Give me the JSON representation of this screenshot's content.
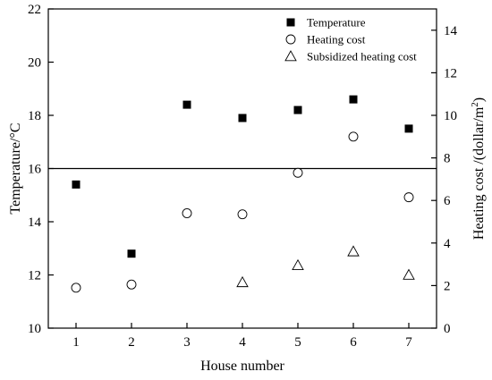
{
  "chart_data": {
    "type": "scatter",
    "xlabel": "House number",
    "ylabel": "Temperature/°C",
    "y2label_prefix": "Heating cost /(dollar/m",
    "y2label_sup": "2",
    "y2label_suffix": ")",
    "xlim": [
      0.5,
      7.5
    ],
    "ylim": [
      10,
      22
    ],
    "y2lim": [
      0,
      15
    ],
    "x_ticks": [
      1,
      2,
      3,
      4,
      5,
      6,
      7
    ],
    "y_ticks": [
      10,
      12,
      14,
      16,
      18,
      20,
      22
    ],
    "y2_ticks": [
      0,
      2,
      4,
      6,
      8,
      10,
      12,
      14
    ],
    "reference_line": {
      "axis": "left",
      "value": 16
    },
    "legend_position": "top-right",
    "series": [
      {
        "name": "Temperature",
        "axis": "left",
        "marker": "filled-square",
        "x": [
          1,
          2,
          3,
          4,
          5,
          6,
          7
        ],
        "y": [
          15.4,
          12.8,
          18.4,
          17.9,
          18.2,
          18.6,
          17.5
        ]
      },
      {
        "name": "Heating cost",
        "axis": "right",
        "marker": "open-circle",
        "x": [
          1,
          2,
          3,
          4,
          5,
          6,
          7
        ],
        "y": [
          1.9,
          2.05,
          5.4,
          5.35,
          7.3,
          9.0,
          6.15
        ]
      },
      {
        "name": "Subsidized heating cost",
        "axis": "right",
        "marker": "open-triangle",
        "x": [
          4,
          5,
          6,
          7
        ],
        "y": [
          2.15,
          2.95,
          3.6,
          2.5
        ]
      }
    ]
  }
}
